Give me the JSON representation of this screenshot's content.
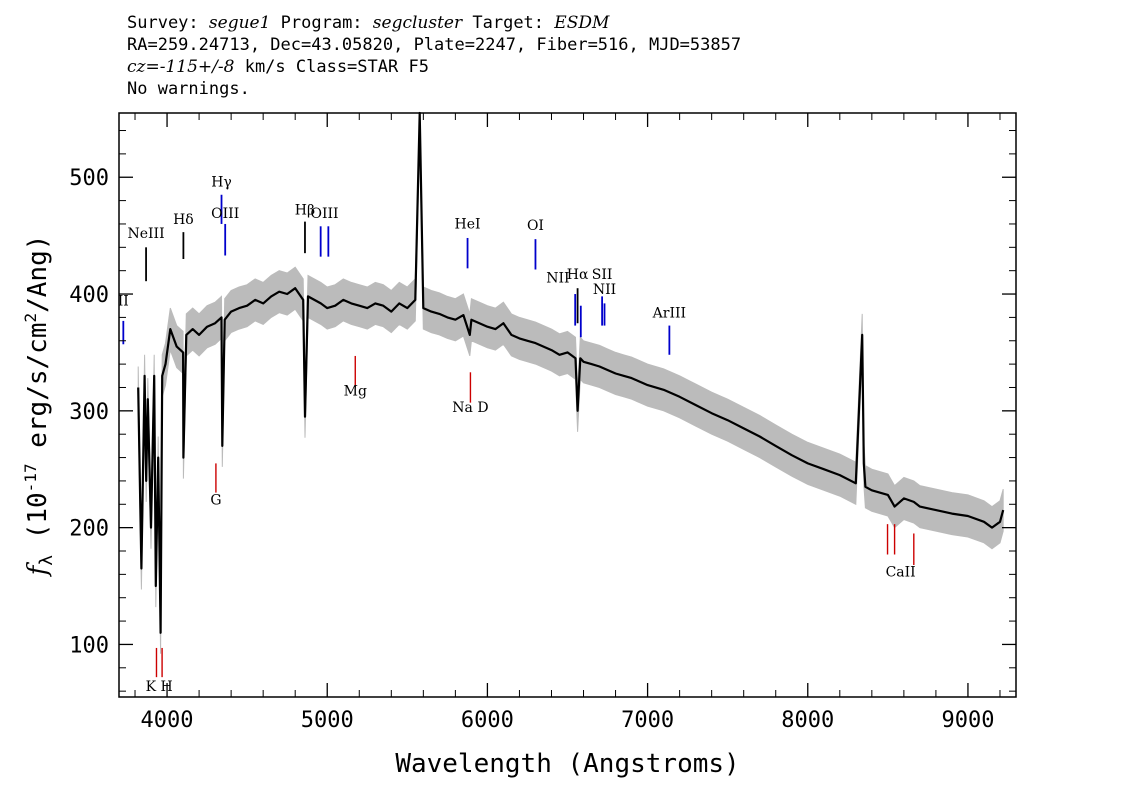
{
  "header": {
    "survey_label": "Survey:",
    "survey_value": "segue1",
    "program_label": "Program:",
    "program_value": "segcluster",
    "target_label": "Target:",
    "target_value": "ESDM",
    "line2": "RA=259.24713, Dec=43.05820, Plate=2247, Fiber=516, MJD=53857",
    "cz_label": "cz=",
    "cz_value": "-115+/-8",
    "cz_rest": " km/s Class=STAR F5",
    "line4": "No warnings."
  },
  "chart_data": {
    "type": "line",
    "xlabel": "Wavelength (Angstroms)",
    "ylabel": "f_λ (10^-17 erg/s/cm^2/Ang)",
    "xlim": [
      3700,
      9300
    ],
    "ylim": [
      55,
      555
    ],
    "x_ticks": [
      4000,
      5000,
      6000,
      7000,
      8000,
      9000
    ],
    "y_ticks": [
      100,
      200,
      300,
      400,
      500
    ],
    "series": [
      {
        "color": "#000000",
        "x": [
          3820,
          3840,
          3860,
          3870,
          3880,
          3900,
          3920,
          3930,
          3945,
          3960,
          3970,
          3990,
          4020,
          4060,
          4100,
          4102,
          4120,
          4160,
          4200,
          4250,
          4300,
          4340,
          4345,
          4360,
          4400,
          4450,
          4500,
          4550,
          4600,
          4650,
          4700,
          4750,
          4800,
          4850,
          4861,
          4880,
          4920,
          4960,
          5000,
          5050,
          5100,
          5150,
          5200,
          5250,
          5300,
          5350,
          5400,
          5450,
          5500,
          5550,
          5577,
          5600,
          5650,
          5700,
          5750,
          5800,
          5850,
          5890,
          5900,
          5950,
          6000,
          6050,
          6100,
          6150,
          6200,
          6250,
          6300,
          6350,
          6400,
          6450,
          6500,
          6550,
          6563,
          6580,
          6600,
          6650,
          6700,
          6750,
          6800,
          6850,
          6900,
          6950,
          7000,
          7100,
          7200,
          7300,
          7400,
          7500,
          7600,
          7700,
          7800,
          7900,
          8000,
          8100,
          8200,
          8300,
          8340,
          8350,
          8360,
          8400,
          8500,
          8542,
          8600,
          8662,
          8700,
          8800,
          8900,
          9000,
          9100,
          9150,
          9200,
          9220
        ],
        "y": [
          320,
          165,
          330,
          240,
          310,
          200,
          330,
          150,
          260,
          110,
          330,
          340,
          370,
          355,
          350,
          260,
          365,
          370,
          365,
          372,
          375,
          380,
          270,
          378,
          385,
          388,
          390,
          395,
          392,
          398,
          402,
          400,
          405,
          395,
          295,
          398,
          395,
          392,
          388,
          390,
          395,
          392,
          390,
          388,
          392,
          390,
          385,
          392,
          388,
          395,
          555,
          388,
          385,
          383,
          380,
          378,
          382,
          365,
          378,
          375,
          372,
          370,
          375,
          365,
          362,
          360,
          358,
          355,
          352,
          348,
          350,
          345,
          300,
          345,
          342,
          340,
          338,
          335,
          332,
          330,
          328,
          325,
          322,
          318,
          312,
          305,
          298,
          292,
          285,
          278,
          270,
          262,
          255,
          250,
          245,
          238,
          365,
          255,
          235,
          232,
          228,
          218,
          225,
          222,
          218,
          215,
          212,
          210,
          205,
          200,
          205,
          215
        ]
      }
    ],
    "error_band": {
      "color": "#bbbbbb",
      "half_width": 18
    },
    "emission_lines": [
      {
        "label": "NeIII",
        "wave": 3869,
        "y_top": 440,
        "y_bottom": 411,
        "color": "#000000"
      },
      {
        "label": "Hδ",
        "wave": 4102,
        "y_top": 453,
        "y_bottom": 430,
        "color": "#000000"
      },
      {
        "label": "Hγ",
        "wave": 4340,
        "y_top": 485,
        "y_bottom": 460,
        "color": "#0000cc"
      },
      {
        "label": "OIII",
        "wave": 4363,
        "y_top": 460,
        "y_bottom": 433,
        "color": "#0000cc"
      },
      {
        "label": "Hβ",
        "wave": 4861,
        "y_top": 462,
        "y_bottom": 435,
        "color": "#000000"
      },
      {
        "label": "OIII",
        "wave": 4959,
        "y_top": 458,
        "y_bottom": 432,
        "color": "#0000cc"
      },
      {
        "label": "OIII",
        "wave": 5007,
        "y_top": 458,
        "y_bottom": 432,
        "color": "#0000cc"
      },
      {
        "label": "HeI",
        "wave": 5876,
        "y_top": 448,
        "y_bottom": 422,
        "color": "#0000cc"
      },
      {
        "label": "OI",
        "wave": 6300,
        "y_top": 447,
        "y_bottom": 421,
        "color": "#0000cc"
      },
      {
        "label": "NII",
        "wave": 6548,
        "y_top": 400,
        "y_bottom": 373,
        "color": "#0000cc"
      },
      {
        "label": "Hα",
        "wave": 6563,
        "y_top": 405,
        "y_bottom": 375,
        "color": "#000000"
      },
      {
        "label": "NII",
        "wave": 6583,
        "y_top": 390,
        "y_bottom": 363,
        "color": "#0000cc"
      },
      {
        "label": "SII",
        "wave": 6716,
        "y_top": 398,
        "y_bottom": 373,
        "color": "#0000cc"
      },
      {
        "label": "NII",
        "wave": 6731,
        "y_top": 392,
        "y_bottom": 373,
        "color": "#0000cc"
      },
      {
        "label": "ArIII",
        "wave": 7136,
        "y_top": 373,
        "y_bottom": 348,
        "color": "#0000cc"
      },
      {
        "label": "II",
        "wave": 3727,
        "y_top": 377,
        "y_bottom": 357,
        "color": "#0000cc"
      }
    ],
    "absorption_lines": [
      {
        "label": "K",
        "wave": 3934,
        "y_top": 97,
        "y_bottom": 72,
        "color": "#cc0000"
      },
      {
        "label": "H",
        "wave": 3969,
        "y_top": 97,
        "y_bottom": 72,
        "color": "#cc0000"
      },
      {
        "label": "G",
        "wave": 4305,
        "y_top": 255,
        "y_bottom": 230,
        "color": "#cc0000"
      },
      {
        "label": "Mg",
        "wave": 5175,
        "y_top": 347,
        "y_bottom": 320,
        "color": "#cc0000"
      },
      {
        "label": "Na D",
        "wave": 5894,
        "y_top": 333,
        "y_bottom": 307,
        "color": "#cc0000"
      },
      {
        "label": "CaII",
        "wave": 8498,
        "y_top": 203,
        "y_bottom": 177,
        "color": "#cc0000"
      },
      {
        "label": "CaII",
        "wave": 8542,
        "y_top": 203,
        "y_bottom": 177,
        "color": "#cc0000"
      },
      {
        "label": "CaII",
        "wave": 8662,
        "y_top": 195,
        "y_bottom": 168,
        "color": "#cc0000"
      }
    ],
    "line_labels": [
      {
        "text": "NeIII",
        "wave": 3869,
        "y": 448
      },
      {
        "text": "Hδ",
        "wave": 4102,
        "y": 460
      },
      {
        "text": "Hγ",
        "wave": 4340,
        "y": 492
      },
      {
        "text": "OIII",
        "wave": 4363,
        "y": 465
      },
      {
        "text": "Hβ",
        "wave": 4861,
        "y": 468
      },
      {
        "text": "OIII",
        "wave": 4983,
        "y": 465
      },
      {
        "text": "HeI",
        "wave": 5876,
        "y": 456
      },
      {
        "text": "OI",
        "wave": 6300,
        "y": 455
      },
      {
        "text": "NII",
        "wave": 6440,
        "y": 410
      },
      {
        "text": "Hα",
        "wave": 6563,
        "y": 413
      },
      {
        "text": "SII",
        "wave": 6716,
        "y": 413
      },
      {
        "text": "NII",
        "wave": 6731,
        "y": 400
      },
      {
        "text": "ArIII",
        "wave": 7136,
        "y": 380
      },
      {
        "text": "II",
        "wave": 3727,
        "y": 390
      },
      {
        "text": "K H",
        "wave": 3951,
        "y": 60
      },
      {
        "text": "G",
        "wave": 4305,
        "y": 220
      },
      {
        "text": "Mg",
        "wave": 5175,
        "y": 313
      },
      {
        "text": "Na  D",
        "wave": 5894,
        "y": 299
      },
      {
        "text": "CaII",
        "wave": 8580,
        "y": 158
      }
    ]
  }
}
